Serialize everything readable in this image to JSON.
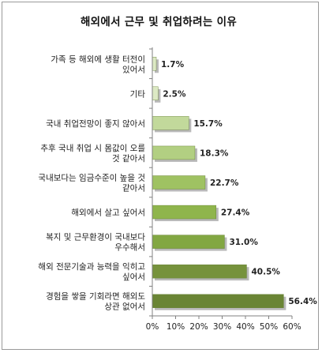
{
  "chart_data": {
    "type": "bar",
    "orientation": "horizontal",
    "title": "해외에서 근무 및 취업하려는 이유",
    "categories": [
      [
        "가족 등 해외에 생활 터전이",
        "있어서"
      ],
      [
        "기타"
      ],
      [
        "국내 취업전망이 좋지 않아서"
      ],
      [
        "추후 국내 취업 시 몸값이 오를",
        "것 같아서"
      ],
      [
        "국내보다는 임금수준이 높을 것",
        "같아서"
      ],
      [
        "해외에서 살고 싶어서"
      ],
      [
        "복지 및 근무환경이 국내보다",
        "우수해서"
      ],
      [
        "해외 전문기술과 능력을 익히고",
        "싶어서"
      ],
      [
        "경험을 쌓을 기회라면 해외도",
        "상관 없어서"
      ]
    ],
    "values": [
      1.7,
      2.5,
      15.7,
      18.3,
      22.7,
      27.4,
      31.0,
      40.5,
      56.4
    ],
    "value_labels": [
      "1.7%",
      "2.5%",
      "15.7%",
      "18.3%",
      "22.7%",
      "27.4%",
      "31.0%",
      "40.5%",
      "56.4%"
    ],
    "xlim": [
      0,
      60
    ],
    "ticks": [
      0,
      10,
      20,
      30,
      40,
      50,
      60
    ],
    "tick_labels": [
      "0%",
      "10%",
      "20%",
      "30%",
      "40%",
      "50%",
      "60%"
    ],
    "grid": false,
    "legend": "none",
    "colors": {
      "light": "#d4e4b4",
      "light_mid": "#bcd792",
      "mid": "#9bbb59",
      "dark": "#76923c",
      "shadow": "#808080",
      "axis": "#808080"
    },
    "bar_colors": [
      "#dce9c4",
      "#dce9c4",
      "#c2d99b",
      "#b2cf82",
      "#9fc262",
      "#8fb54c",
      "#82a742",
      "#76923c",
      "#6a8535"
    ]
  }
}
